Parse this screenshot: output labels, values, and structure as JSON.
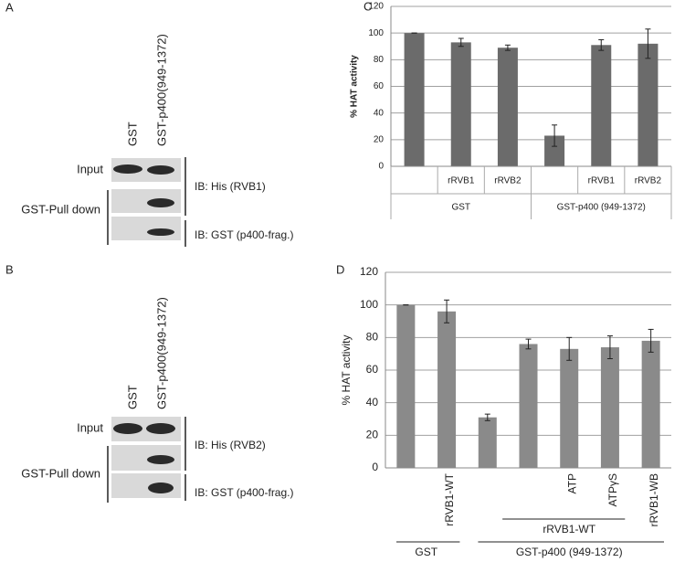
{
  "panels": {
    "a": {
      "letter": "A",
      "lanes": [
        "GST",
        "GST-p400(949-1372)"
      ],
      "input": "Input",
      "pulldown": "GST-Pull down",
      "ib1": "IB: His (RVB1)",
      "ib2": "IB: GST (p400-frag.)"
    },
    "b": {
      "letter": "B",
      "lanes": [
        "GST",
        "GST-p400(949-1372)"
      ],
      "input": "Input",
      "pulldown": "GST-Pull down",
      "ib1": "IB: His (RVB2)",
      "ib2": "IB: GST (p400-frag.)"
    }
  },
  "chart_data": [
    {
      "type": "bar",
      "letter": "C",
      "ylabel": "% HAT activity",
      "categories": [
        null,
        "rRVB1",
        "rRVB2",
        null,
        "rRVB1",
        "rRVB2"
      ],
      "values": [
        100,
        93,
        89,
        23,
        91,
        92
      ],
      "errors": [
        0,
        3,
        2,
        8,
        4,
        11
      ],
      "groups": [
        "GST",
        "GST-p400 (949-1372)"
      ],
      "color": "#6b6b6b",
      "ylim": [
        0,
        120
      ],
      "yticks": [
        0,
        20,
        40,
        60,
        80,
        100,
        120
      ],
      "grid": true
    },
    {
      "type": "bar",
      "letter": "D",
      "ylabel": "% HAT activity",
      "categories": [
        null,
        "rRVB1-WT",
        null,
        null,
        "ATP",
        "ATPγS",
        "rRVB1-WB"
      ],
      "values": [
        100,
        96,
        31,
        76,
        73,
        74,
        78
      ],
      "errors": [
        0,
        7,
        2,
        3,
        7,
        7,
        7
      ],
      "subgroup": "rRVB1-WT",
      "groups": [
        "GST",
        "GST-p400 (949-1372)"
      ],
      "color": "#8a8a8a",
      "ylim": [
        0,
        120
      ],
      "yticks": [
        0,
        20,
        40,
        60,
        80,
        100,
        120
      ],
      "grid": true
    }
  ]
}
